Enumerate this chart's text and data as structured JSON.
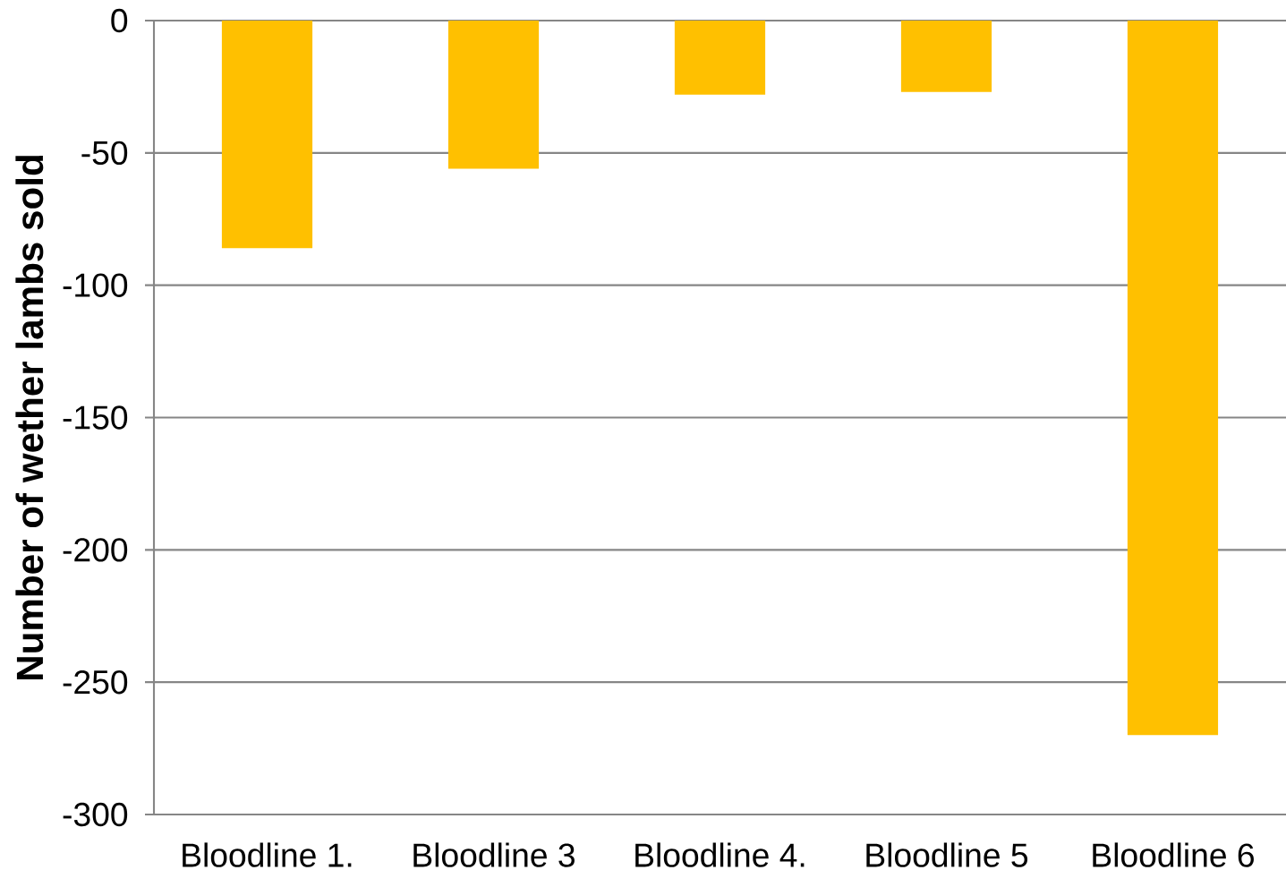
{
  "chart_data": {
    "type": "bar",
    "ylabel": "Number of wether lambs sold",
    "categories": [
      "Bloodline 1.",
      "Bloodline 3",
      "Bloodline 4.",
      "Bloodline 5",
      "Bloodline 6"
    ],
    "values": [
      -86,
      -56,
      -28,
      -27,
      -270
    ],
    "color": "#ffc000",
    "ylim": [
      -300,
      0
    ],
    "yticks": [
      -300,
      -250,
      -200,
      -150,
      -100,
      -50,
      0
    ],
    "grid": "y"
  }
}
